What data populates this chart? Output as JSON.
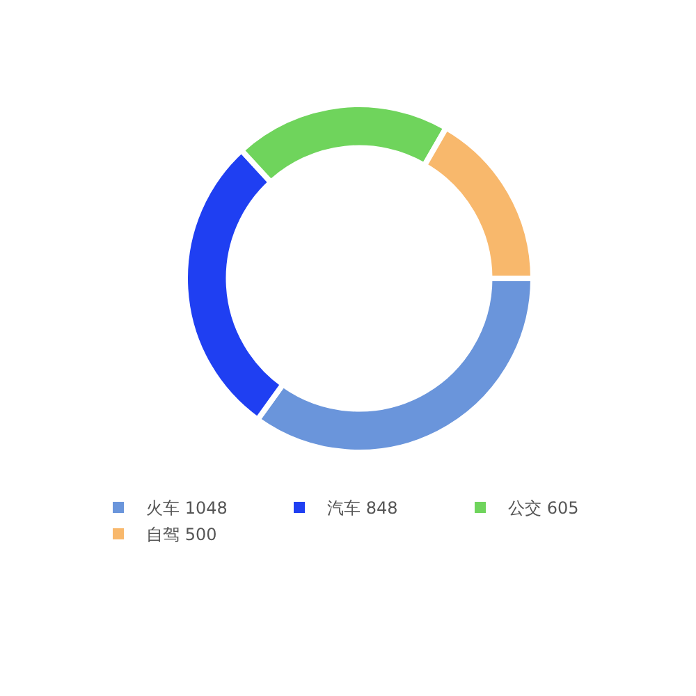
{
  "chart_data": {
    "type": "donut",
    "categories": [
      "火车 1048",
      "汽车 848",
      "公交 605",
      "自驾 500"
    ],
    "values": [
      1048,
      848,
      605,
      500
    ],
    "colors": [
      "#6a95db",
      "#1f3ff2",
      "#6fd45c",
      "#f8b86c"
    ],
    "legend": "bottom"
  }
}
